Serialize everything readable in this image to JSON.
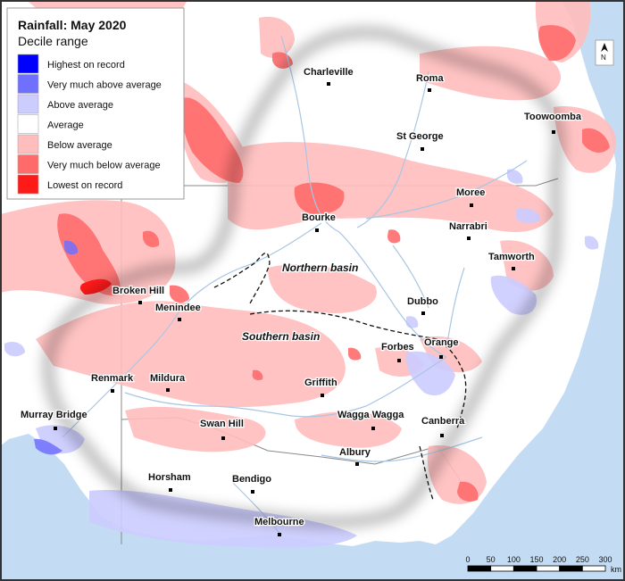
{
  "legend": {
    "title": "Rainfall: May 2020",
    "subtitle": "Decile range",
    "items": [
      {
        "label": "Highest on record",
        "color": "#0000ff"
      },
      {
        "label": "Very much above average",
        "color": "#7070ff"
      },
      {
        "label": "Above average",
        "color": "#ccccff"
      },
      {
        "label": "Average",
        "color": "#ffffff"
      },
      {
        "label": "Below average",
        "color": "#ffbdbd"
      },
      {
        "label": "Very much below average",
        "color": "#ff6b6b"
      },
      {
        "label": "Lowest on record",
        "color": "#ff1a1a"
      }
    ]
  },
  "basins": [
    {
      "label": "Northern basin"
    },
    {
      "label": "Southern basin"
    }
  ],
  "towns": [
    {
      "label": "Charleville"
    },
    {
      "label": "Roma"
    },
    {
      "label": "Toowoomba"
    },
    {
      "label": "St George"
    },
    {
      "label": "Moree"
    },
    {
      "label": "Bourke"
    },
    {
      "label": "Narrabri"
    },
    {
      "label": "Tamworth"
    },
    {
      "label": "Broken Hill"
    },
    {
      "label": "Menindee"
    },
    {
      "label": "Dubbo"
    },
    {
      "label": "Orange"
    },
    {
      "label": "Forbes"
    },
    {
      "label": "Renmark"
    },
    {
      "label": "Mildura"
    },
    {
      "label": "Griffith"
    },
    {
      "label": "Murray Bridge"
    },
    {
      "label": "Wagga Wagga"
    },
    {
      "label": "Canberra"
    },
    {
      "label": "Swan Hill"
    },
    {
      "label": "Albury"
    },
    {
      "label": "Horsham"
    },
    {
      "label": "Bendigo"
    },
    {
      "label": "Melbourne"
    }
  ],
  "scale_bar": {
    "ticks": [
      "0",
      "50",
      "100",
      "150",
      "200",
      "250",
      "300"
    ],
    "unit": "km"
  },
  "north_arrow": {
    "label": "N"
  },
  "colors": {
    "ocean": "#c3dcf3",
    "land": "#ffffff",
    "river": "#a9c6e4",
    "border": "#8a8a8a"
  }
}
